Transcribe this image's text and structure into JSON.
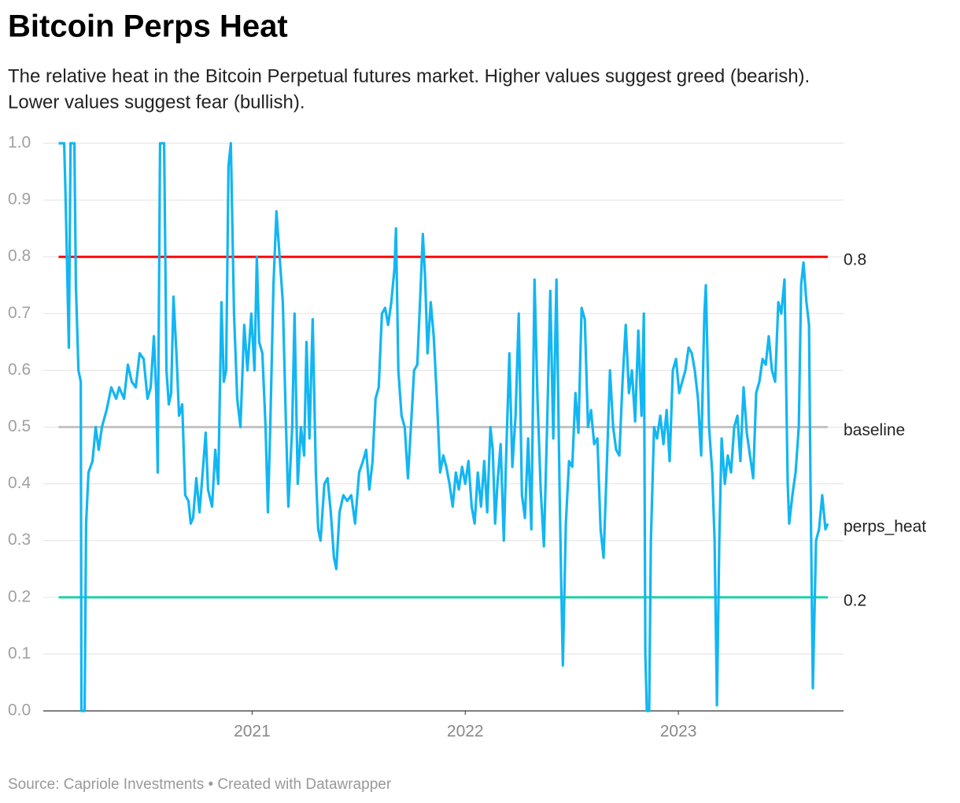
{
  "chart_data": {
    "type": "line",
    "title": "Bitcoin Perps Heat",
    "subtitle_lines": [
      "The relative heat in the Bitcoin Perpetual futures market. Higher values suggest greed (bearish).",
      "Lower values suggest fear (bullish)."
    ],
    "source": "Source: Capriole Investments • Created with Datawrapper",
    "xlim": [
      2020.02,
      2023.775
    ],
    "xticks": [
      2021,
      2022,
      2023
    ],
    "ylim": [
      0,
      1
    ],
    "yticks": [
      {
        "value": 0,
        "label": "0.0"
      },
      0.1,
      0.2,
      0.3,
      0.4,
      0.5,
      0.6,
      0.7,
      0.8,
      0.9,
      {
        "value": 1,
        "label": "1.0"
      }
    ],
    "grid": true,
    "series": [
      {
        "name": "baseline",
        "color": "#c4c4c4",
        "x": [
          2020.092,
          2023.701
        ],
        "values": [
          0.5,
          0.5
        ]
      },
      {
        "name": "0.2",
        "color": "#1cd2a4",
        "x": [
          2020.092,
          2023.701
        ],
        "values": [
          0.2,
          0.2
        ]
      },
      {
        "name": "0.8",
        "color": "#ff0000",
        "x": [
          2020.092,
          2023.701
        ],
        "values": [
          0.8,
          0.8
        ]
      },
      {
        "name": "perps_heat",
        "color": "#12b6f2",
        "x": [
          2020.092,
          2020.118,
          2020.125,
          2020.14,
          2020.148,
          2020.166,
          2020.173,
          2020.185,
          2020.196,
          2020.199,
          2020.214,
          2020.221,
          2020.232,
          2020.251,
          2020.266,
          2020.28,
          2020.295,
          2020.317,
          2020.339,
          2020.362,
          2020.376,
          2020.399,
          2020.417,
          2020.435,
          2020.454,
          2020.472,
          2020.491,
          2020.509,
          2020.524,
          2020.539,
          2020.55,
          2020.557,
          2020.568,
          2020.587,
          2020.598,
          2020.609,
          2020.62,
          2020.631,
          2020.646,
          2020.657,
          2020.672,
          2020.686,
          2020.701,
          2020.712,
          2020.723,
          2020.738,
          2020.753,
          2020.768,
          2020.782,
          2020.793,
          2020.812,
          2020.827,
          2020.841,
          2020.856,
          2020.867,
          2020.878,
          2020.889,
          2020.9,
          2020.915,
          2020.93,
          2020.945,
          2020.963,
          2020.978,
          2020.996,
          2021.011,
          2021.022,
          2021.033,
          2021.048,
          2021.063,
          2021.074,
          2021.085,
          2021.1,
          2021.114,
          2021.129,
          2021.144,
          2021.159,
          2021.17,
          2021.188,
          2021.199,
          2021.214,
          2021.229,
          2021.244,
          2021.255,
          2021.269,
          2021.284,
          2021.299,
          2021.31,
          2021.321,
          2021.339,
          2021.354,
          2021.369,
          2021.384,
          2021.395,
          2021.41,
          2021.428,
          2021.446,
          2021.465,
          2021.483,
          2021.502,
          2021.52,
          2021.535,
          2021.55,
          2021.565,
          2021.579,
          2021.594,
          2021.609,
          2021.624,
          2021.638,
          2021.653,
          2021.668,
          2021.675,
          2021.686,
          2021.701,
          2021.716,
          2021.731,
          2021.745,
          2021.76,
          2021.775,
          2021.79,
          2021.801,
          2021.812,
          2021.823,
          2021.838,
          2021.852,
          2021.867,
          2021.882,
          2021.897,
          2021.911,
          2021.926,
          2021.941,
          2021.956,
          2021.97,
          2021.985,
          2022.0,
          2022.015,
          2022.03,
          2022.044,
          2022.059,
          2022.074,
          2022.089,
          2022.103,
          2022.118,
          2022.129,
          2022.14,
          2022.151,
          2022.166,
          2022.181,
          2022.192,
          2022.207,
          2022.221,
          2022.236,
          2022.251,
          2022.266,
          2022.28,
          2022.295,
          2022.31,
          2022.325,
          2022.339,
          2022.354,
          2022.369,
          2022.384,
          2022.399,
          2022.413,
          2022.428,
          2022.443,
          2022.45,
          2022.458,
          2022.472,
          2022.487,
          2022.502,
          2022.517,
          2022.531,
          2022.546,
          2022.561,
          2022.576,
          2022.59,
          2022.605,
          2022.62,
          2022.635,
          2022.649,
          2022.664,
          2022.679,
          2022.694,
          2022.708,
          2022.723,
          2022.738,
          2022.753,
          2022.768,
          2022.782,
          2022.797,
          2022.812,
          2022.827,
          2022.838,
          2022.845,
          2022.852,
          2022.863,
          2022.871,
          2022.886,
          2022.9,
          2022.915,
          2022.93,
          2022.945,
          2022.959,
          2022.974,
          2022.989,
          2023.004,
          2023.018,
          2023.033,
          2023.048,
          2023.063,
          2023.077,
          2023.092,
          2023.107,
          2023.122,
          2023.129,
          2023.144,
          2023.159,
          2023.17,
          2023.181,
          2023.192,
          2023.203,
          2023.218,
          2023.232,
          2023.247,
          2023.262,
          2023.277,
          2023.291,
          2023.306,
          2023.321,
          2023.336,
          2023.351,
          2023.365,
          2023.38,
          2023.395,
          2023.41,
          2023.424,
          2023.439,
          2023.454,
          2023.469,
          2023.483,
          2023.498,
          2023.513,
          2023.52,
          2023.535,
          2023.55,
          2023.565,
          2023.576,
          2023.587,
          2023.601,
          2023.613,
          2023.62,
          2023.631,
          2023.646,
          2023.66,
          2023.675,
          2023.69,
          2023.701
        ],
        "values": [
          1.0,
          1.0,
          0.9,
          0.64,
          1.0,
          1.0,
          0.75,
          0.6,
          0.58,
          0.0,
          0.0,
          0.33,
          0.42,
          0.44,
          0.5,
          0.46,
          0.5,
          0.53,
          0.57,
          0.55,
          0.57,
          0.55,
          0.61,
          0.58,
          0.57,
          0.63,
          0.62,
          0.55,
          0.57,
          0.66,
          0.56,
          0.42,
          1.0,
          1.0,
          0.6,
          0.54,
          0.56,
          0.73,
          0.62,
          0.52,
          0.54,
          0.38,
          0.37,
          0.33,
          0.34,
          0.41,
          0.35,
          0.42,
          0.49,
          0.39,
          0.36,
          0.46,
          0.4,
          0.72,
          0.58,
          0.6,
          0.96,
          1.0,
          0.7,
          0.55,
          0.5,
          0.68,
          0.6,
          0.7,
          0.6,
          0.8,
          0.65,
          0.63,
          0.5,
          0.35,
          0.5,
          0.75,
          0.88,
          0.8,
          0.72,
          0.5,
          0.36,
          0.5,
          0.7,
          0.4,
          0.5,
          0.45,
          0.65,
          0.48,
          0.69,
          0.42,
          0.32,
          0.3,
          0.4,
          0.41,
          0.35,
          0.27,
          0.25,
          0.35,
          0.38,
          0.37,
          0.38,
          0.33,
          0.42,
          0.44,
          0.46,
          0.39,
          0.44,
          0.55,
          0.57,
          0.7,
          0.71,
          0.68,
          0.72,
          0.78,
          0.85,
          0.6,
          0.52,
          0.5,
          0.41,
          0.5,
          0.6,
          0.61,
          0.74,
          0.84,
          0.76,
          0.63,
          0.72,
          0.66,
          0.55,
          0.42,
          0.45,
          0.43,
          0.4,
          0.36,
          0.42,
          0.39,
          0.43,
          0.4,
          0.44,
          0.36,
          0.33,
          0.42,
          0.36,
          0.44,
          0.35,
          0.5,
          0.46,
          0.33,
          0.4,
          0.47,
          0.3,
          0.45,
          0.63,
          0.43,
          0.52,
          0.7,
          0.38,
          0.34,
          0.48,
          0.32,
          0.76,
          0.55,
          0.39,
          0.29,
          0.5,
          0.74,
          0.48,
          0.76,
          0.38,
          0.23,
          0.08,
          0.33,
          0.44,
          0.43,
          0.56,
          0.49,
          0.71,
          0.69,
          0.5,
          0.53,
          0.47,
          0.48,
          0.32,
          0.27,
          0.43,
          0.6,
          0.5,
          0.46,
          0.45,
          0.58,
          0.68,
          0.56,
          0.6,
          0.51,
          0.67,
          0.52,
          0.7,
          0.1,
          0.0,
          0.0,
          0.3,
          0.5,
          0.48,
          0.52,
          0.47,
          0.53,
          0.44,
          0.6,
          0.62,
          0.56,
          0.58,
          0.6,
          0.64,
          0.63,
          0.6,
          0.55,
          0.45,
          0.7,
          0.75,
          0.5,
          0.42,
          0.3,
          0.01,
          0.3,
          0.48,
          0.4,
          0.45,
          0.42,
          0.5,
          0.52,
          0.44,
          0.57,
          0.49,
          0.45,
          0.41,
          0.56,
          0.58,
          0.62,
          0.61,
          0.66,
          0.6,
          0.58,
          0.72,
          0.7,
          0.76,
          0.4,
          0.33,
          0.38,
          0.42,
          0.5,
          0.75,
          0.79,
          0.72,
          0.68,
          0.4,
          0.04,
          0.3,
          0.32,
          0.38,
          0.32,
          0.33
        ]
      }
    ]
  }
}
